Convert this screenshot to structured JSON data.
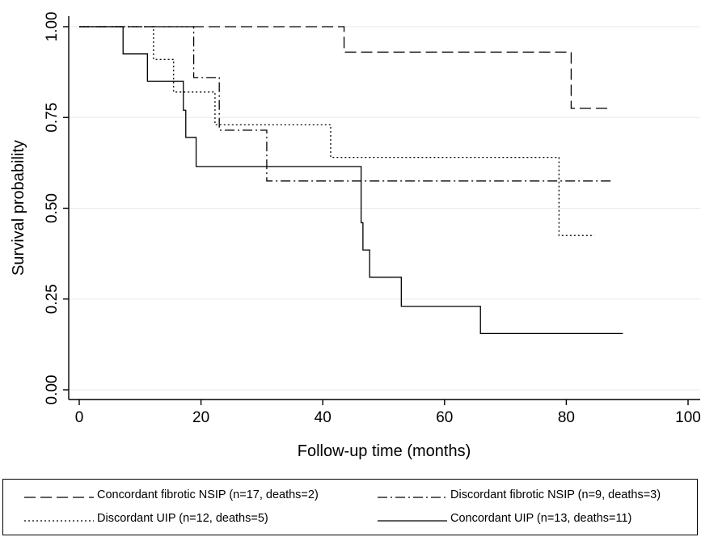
{
  "chart_data": {
    "type": "line",
    "title": "",
    "xlabel": "Follow-up time (months)",
    "ylabel": "Survival probability",
    "xlim": [
      0,
      100
    ],
    "ylim": [
      0,
      1
    ],
    "x_ticks": [
      "0",
      "20",
      "40",
      "60",
      "80",
      "100"
    ],
    "y_ticks": [
      "0.00",
      "0.25",
      "0.50",
      "0.75",
      "1.00"
    ],
    "grid": "horizontal",
    "legend_position": "bottom",
    "series": [
      {
        "name": "Concordant fibrotic NSIP (n=17, deaths=2)",
        "style": "longdash",
        "steps": [
          [
            0,
            1.0
          ],
          [
            43.5,
            0.93
          ],
          [
            80.8,
            0.775
          ],
          [
            86.8,
            0.775
          ]
        ]
      },
      {
        "name": "Discordant fibrotic NSIP (n=9, deaths=3)",
        "style": "dashdot",
        "steps": [
          [
            0,
            1.0
          ],
          [
            18.8,
            0.86
          ],
          [
            23,
            0.715
          ],
          [
            30.8,
            0.575
          ],
          [
            87.5,
            0.575
          ]
        ]
      },
      {
        "name": "Discordant UIP (n=12, deaths=5)",
        "style": "dotted",
        "steps": [
          [
            0,
            1.0
          ],
          [
            12.2,
            0.91
          ],
          [
            15.5,
            0.82
          ],
          [
            22.3,
            0.73
          ],
          [
            41.3,
            0.64
          ],
          [
            78.8,
            0.425
          ],
          [
            84.6,
            0.425
          ]
        ]
      },
      {
        "name": "Concordant UIP (n=13, deaths=11)",
        "style": "solid",
        "steps": [
          [
            0,
            1.0
          ],
          [
            7.2,
            0.925
          ],
          [
            11.2,
            0.85
          ],
          [
            17.1,
            0.77
          ],
          [
            17.5,
            0.695
          ],
          [
            19.2,
            0.615
          ],
          [
            46.3,
            0.46
          ],
          [
            46.6,
            0.385
          ],
          [
            47.7,
            0.31
          ],
          [
            52.9,
            0.23
          ],
          [
            65.9,
            0.155
          ],
          [
            89.3,
            0.155
          ]
        ]
      }
    ]
  },
  "legend": {
    "items": [
      "Concordant fibrotic NSIP (n=17, deaths=2)",
      "Discordant fibrotic NSIP (n=9, deaths=3)",
      "Discordant UIP (n=12, deaths=5)",
      "Concordant UIP (n=13, deaths=11)"
    ]
  }
}
